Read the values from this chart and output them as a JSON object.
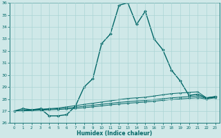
{
  "title": "",
  "xlabel": "Humidex (Indice chaleur)",
  "ylabel": "",
  "bg_color": "#cfe8e8",
  "grid_color": "#aad4d4",
  "line_color": "#006666",
  "xlim": [
    -0.5,
    23.5
  ],
  "ylim": [
    26,
    36
  ],
  "xticks": [
    0,
    1,
    2,
    3,
    4,
    5,
    6,
    7,
    8,
    9,
    10,
    11,
    12,
    13,
    14,
    15,
    16,
    17,
    18,
    19,
    20,
    21,
    22,
    23
  ],
  "yticks": [
    26,
    27,
    28,
    29,
    30,
    31,
    32,
    33,
    34,
    35,
    36
  ],
  "series": [
    {
      "x": [
        0,
        1,
        2,
        3,
        4,
        5,
        6,
        7,
        8,
        9,
        10,
        11,
        12,
        13,
        14,
        15,
        16,
        17,
        18,
        19,
        20,
        21,
        22,
        23
      ],
      "y": [
        27.0,
        27.2,
        27.1,
        27.2,
        26.6,
        26.6,
        26.7,
        27.4,
        29.0,
        29.7,
        32.6,
        33.4,
        35.8,
        36.0,
        34.2,
        35.3,
        33.0,
        32.1,
        30.4,
        29.5,
        28.3,
        28.4,
        28.1,
        28.2
      ],
      "marker": "D",
      "markersize": 2.0,
      "linewidth": 1.0
    },
    {
      "x": [
        0,
        1,
        2,
        3,
        4,
        5,
        6,
        7,
        8,
        9,
        10,
        11,
        12,
        13,
        14,
        15,
        16,
        17,
        18,
        19,
        20,
        21,
        22,
        23
      ],
      "y": [
        27.0,
        27.05,
        27.1,
        27.15,
        27.2,
        27.25,
        27.35,
        27.45,
        27.55,
        27.65,
        27.75,
        27.85,
        27.95,
        28.05,
        28.1,
        28.15,
        28.25,
        28.35,
        28.45,
        28.5,
        28.55,
        28.6,
        28.1,
        28.2
      ],
      "marker": "D",
      "markersize": 1.5,
      "linewidth": 0.7
    },
    {
      "x": [
        0,
        1,
        2,
        3,
        4,
        5,
        6,
        7,
        8,
        9,
        10,
        11,
        12,
        13,
        14,
        15,
        16,
        17,
        18,
        19,
        20,
        21,
        22,
        23
      ],
      "y": [
        27.0,
        27.04,
        27.08,
        27.12,
        27.16,
        27.2,
        27.25,
        27.32,
        27.4,
        27.48,
        27.56,
        27.64,
        27.72,
        27.78,
        27.83,
        27.88,
        27.95,
        28.02,
        28.1,
        28.15,
        28.2,
        28.25,
        28.05,
        28.15
      ],
      "marker": "D",
      "markersize": 1.5,
      "linewidth": 0.7
    },
    {
      "x": [
        0,
        1,
        2,
        3,
        4,
        5,
        6,
        7,
        8,
        9,
        10,
        11,
        12,
        13,
        14,
        15,
        16,
        17,
        18,
        19,
        20,
        21,
        22,
        23
      ],
      "y": [
        27.0,
        27.02,
        27.04,
        27.07,
        27.1,
        27.13,
        27.17,
        27.22,
        27.28,
        27.35,
        27.43,
        27.51,
        27.59,
        27.65,
        27.7,
        27.75,
        27.82,
        27.89,
        27.96,
        28.01,
        28.06,
        28.11,
        28.0,
        28.1
      ],
      "marker": "D",
      "markersize": 1.5,
      "linewidth": 0.7
    }
  ]
}
